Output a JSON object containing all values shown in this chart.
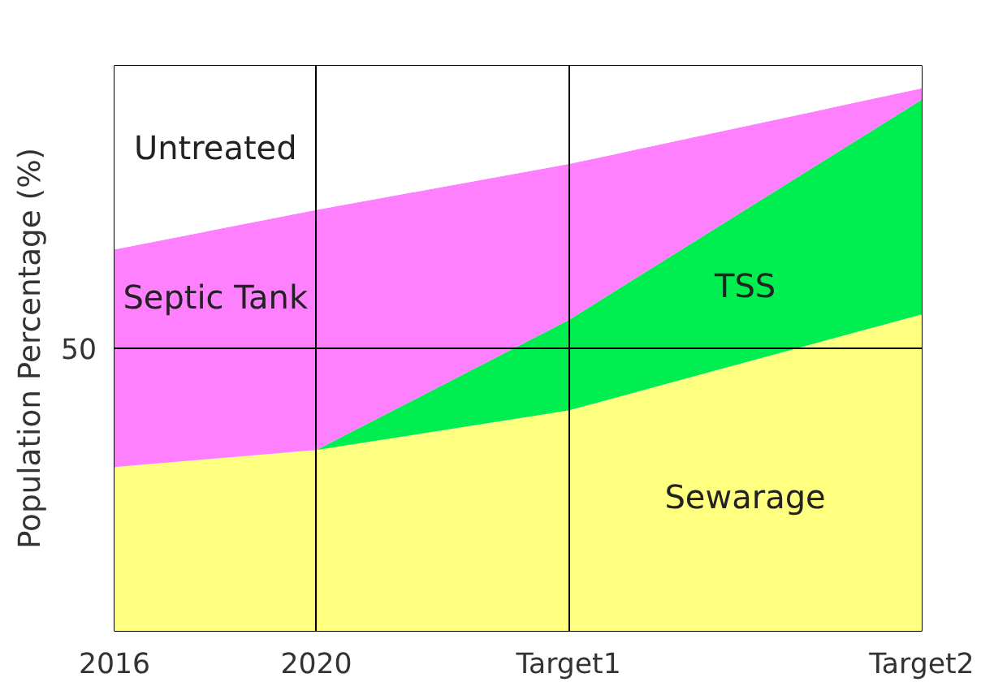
{
  "chart_data": {
    "type": "area",
    "stacked": true,
    "ylabel": "Population Percentage (%)",
    "x": [
      2016,
      2020,
      2025,
      2032
    ],
    "xlim": [
      2016,
      2032
    ],
    "xticks": [
      2016,
      2020,
      {
        "value": 2025,
        "label": "Target1"
      },
      {
        "value": 2032,
        "label": "Target2"
      }
    ],
    "ylim": [
      0,
      100
    ],
    "yticks": [
      50
    ],
    "grid": true,
    "series": [
      {
        "name": "Sewarage",
        "color": "#ffff80",
        "values": [
          29,
          32,
          39,
          56
        ]
      },
      {
        "name": "TSS",
        "color": "#00ee50",
        "values": [
          0,
          0,
          16,
          38
        ]
      },
      {
        "name": "Septic Tank",
        "color": "#ff80ff",
        "values": [
          38.5,
          42.5,
          27.6,
          2
        ]
      },
      {
        "name": "Untreated",
        "color": "#ffffff",
        "values": [
          32.5,
          25.5,
          17.4,
          4
        ]
      }
    ]
  }
}
